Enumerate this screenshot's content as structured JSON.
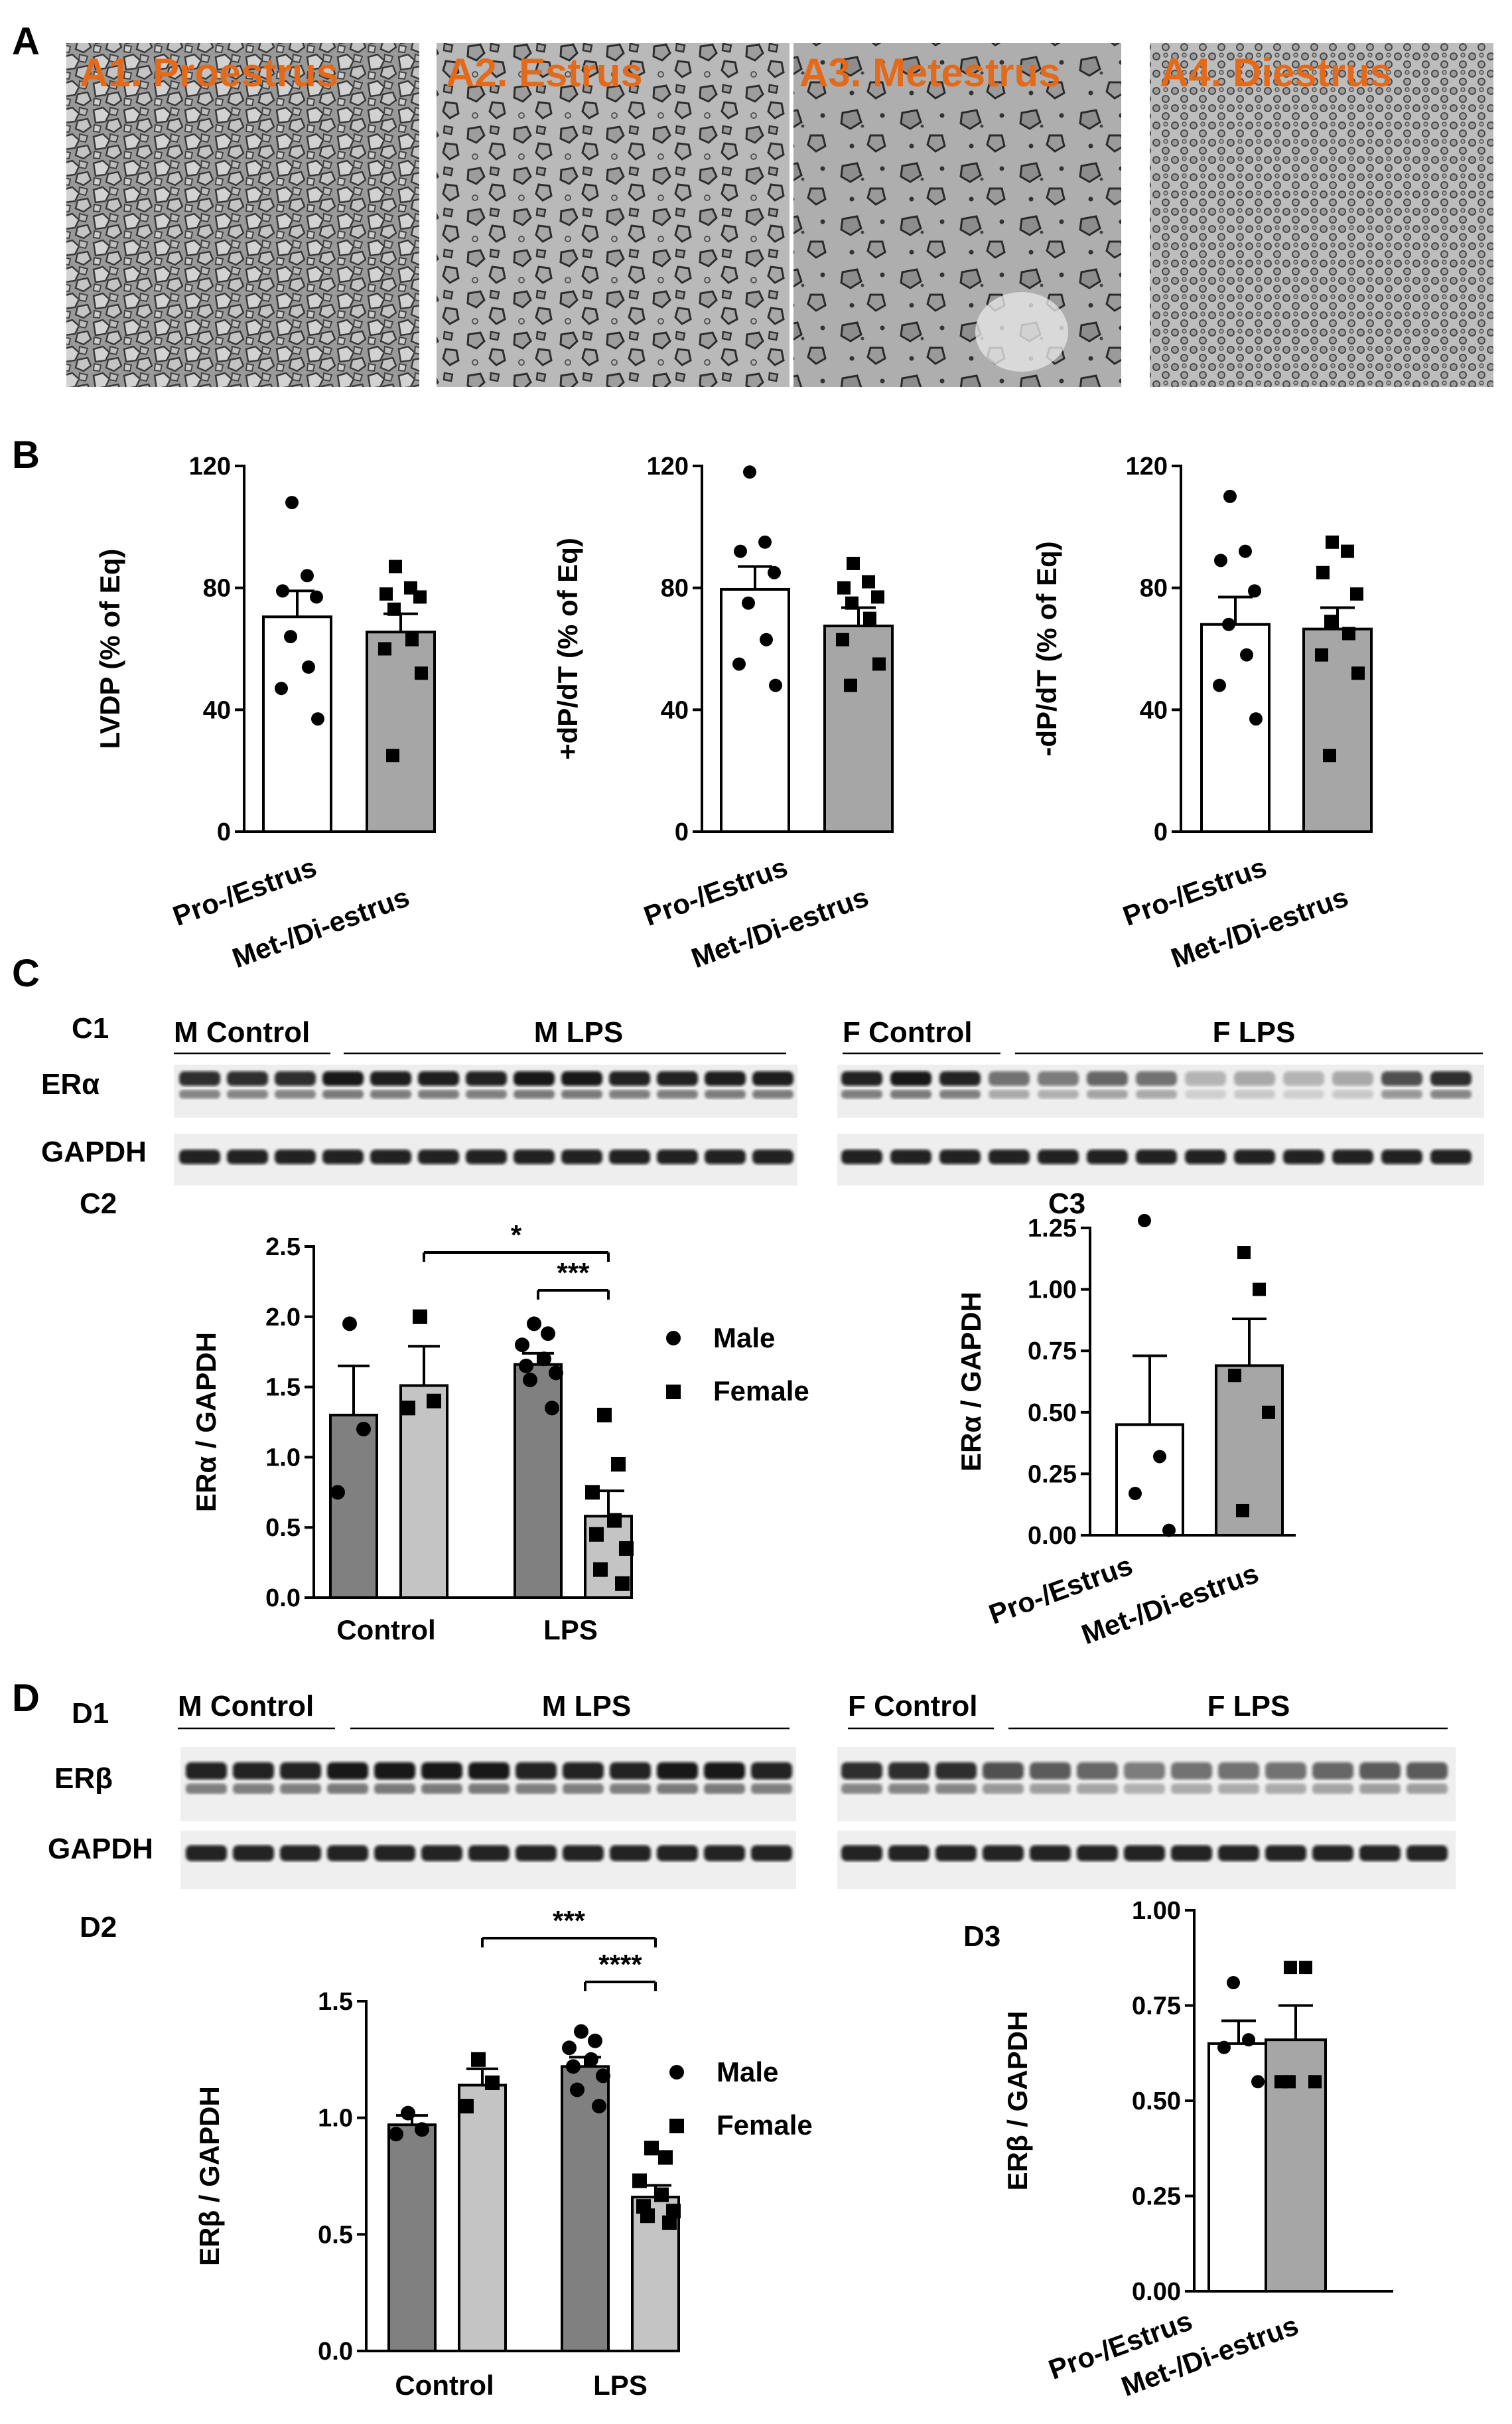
{
  "panel_letters": {
    "A": "A",
    "B": "B",
    "C": "C",
    "D": "D"
  },
  "photos": [
    {
      "label": "A1. Proestrus"
    },
    {
      "label": "A2. Estrus"
    },
    {
      "label": "A3. Metestrus"
    },
    {
      "label": "A4. Diestrus"
    }
  ],
  "colors": {
    "label_orange": "#e26a1a",
    "male_bar": "#808080",
    "female_bar": "#c4c4c4",
    "metdi_bar": "#a6a6a6",
    "pro_bar": "#ffffff"
  },
  "blots": [
    {
      "id": "C1",
      "tag": "C1",
      "groups": {
        "m_control": "M Control",
        "m_lps": "M LPS",
        "f_control": "F Control",
        "f_lps": "F LPS"
      },
      "rows": {
        "target": "ERα",
        "loading": "GAPDH"
      }
    },
    {
      "id": "D1",
      "tag": "D1",
      "groups": {
        "m_control": "M Control",
        "m_lps": "M LPS",
        "f_control": "F Control",
        "f_lps": "F LPS"
      },
      "rows": {
        "target": "ERβ",
        "loading": "GAPDH"
      }
    }
  ],
  "legend": {
    "male": "Male",
    "female": "Female"
  },
  "chart_data": [
    {
      "id": "B-LVDP",
      "type": "bar",
      "categories": [
        "Pro-/Estrus",
        "Met-/Di-estrus"
      ],
      "ylabel": "LVDP (% of Eq)",
      "ylim": [
        0,
        120
      ],
      "yticks": [
        "0",
        "40",
        "80",
        "120"
      ],
      "means": [
        70.5,
        65.5
      ],
      "sem": [
        8.5,
        6.0
      ],
      "points": [
        [
          108,
          84,
          79,
          77,
          64,
          54,
          47,
          37
        ],
        [
          87,
          80,
          78,
          77,
          73,
          63,
          60,
          52,
          25
        ]
      ]
    },
    {
      "id": "B-pdpdt",
      "type": "bar",
      "categories": [
        "Pro-/Estrus",
        "Met-/Di-estrus"
      ],
      "ylabel": "+dP/dT (% of Eq)",
      "ylim": [
        0,
        120
      ],
      "yticks": [
        "0",
        "40",
        "80",
        "120"
      ],
      "means": [
        79.5,
        67.5
      ],
      "sem": [
        7.5,
        6.0
      ],
      "points": [
        [
          118,
          95,
          92,
          85,
          75,
          63,
          55,
          48
        ],
        [
          88,
          82,
          80,
          77,
          75,
          70,
          63,
          55,
          48
        ]
      ]
    },
    {
      "id": "B-ndpdt",
      "type": "bar",
      "categories": [
        "Pro-/Estrus",
        "Met-/Di-estrus"
      ],
      "ylabel": "-dP/dT (% of Eq)",
      "ylim": [
        0,
        120
      ],
      "yticks": [
        "0",
        "40",
        "80",
        "120"
      ],
      "means": [
        68,
        66.5
      ],
      "sem": [
        9.0,
        7.0
      ],
      "points": [
        [
          110,
          92,
          89,
          79,
          68,
          58,
          48,
          37
        ],
        [
          95,
          92,
          85,
          78,
          69,
          65,
          58,
          52,
          25
        ]
      ]
    },
    {
      "id": "C2",
      "tag": "C2",
      "type": "bar",
      "categories": [
        "Control",
        "LPS"
      ],
      "series": [
        {
          "name": "Male"
        },
        {
          "name": "Female"
        }
      ],
      "ylabel": "ERα / GAPDH",
      "ylim": [
        0,
        2.5
      ],
      "yticks": [
        "0.0",
        "0.5",
        "1.0",
        "1.5",
        "2.0",
        "2.5"
      ],
      "means": [
        [
          1.3,
          1.51
        ],
        [
          1.66,
          0.58
        ]
      ],
      "sem": [
        [
          0.35,
          0.28
        ],
        [
          0.08,
          0.18
        ]
      ],
      "points": [
        [
          [
            1.95,
            1.2,
            0.75
          ],
          [
            2.0,
            1.4,
            1.35
          ]
        ],
        [
          [
            1.95,
            1.88,
            1.8,
            1.7,
            1.65,
            1.6,
            1.55,
            1.35
          ],
          [
            1.3,
            0.95,
            0.75,
            0.55,
            0.45,
            0.35,
            0.2,
            0.1
          ]
        ]
      ],
      "significance": [
        {
          "label": "*",
          "span": "Control-Female to LPS-Female"
        },
        {
          "label": "***",
          "span": "LPS-Male to LPS-Female"
        }
      ]
    },
    {
      "id": "C3",
      "tag": "C3",
      "type": "bar",
      "categories": [
        "Pro-/Estrus",
        "Met-/Di-estrus"
      ],
      "ylabel": "ERα / GAPDH",
      "ylim": [
        0,
        1.25
      ],
      "yticks": [
        "0.00",
        "0.25",
        "0.50",
        "0.75",
        "1.00",
        "1.25"
      ],
      "means": [
        0.45,
        0.69
      ],
      "sem": [
        0.28,
        0.19
      ],
      "points": [
        [
          1.28,
          0.32,
          0.17,
          0.02
        ],
        [
          1.15,
          1.0,
          0.65,
          0.5,
          0.1
        ]
      ]
    },
    {
      "id": "D2",
      "tag": "D2",
      "type": "bar",
      "categories": [
        "Control",
        "LPS"
      ],
      "series": [
        {
          "name": "Male"
        },
        {
          "name": "Female"
        }
      ],
      "ylabel": "ERβ / GAPDH",
      "ylim": [
        0,
        1.5
      ],
      "yticks": [
        "0.0",
        "0.5",
        "1.0",
        "1.5"
      ],
      "means": [
        [
          0.97,
          1.14
        ],
        [
          1.22,
          0.66
        ]
      ],
      "sem": [
        [
          0.04,
          0.07
        ],
        [
          0.04,
          0.05
        ]
      ],
      "points": [
        [
          [
            1.02,
            0.95,
            0.93
          ],
          [
            1.25,
            1.15,
            1.05
          ]
        ],
        [
          [
            1.37,
            1.33,
            1.3,
            1.25,
            1.22,
            1.18,
            1.12,
            1.05
          ],
          [
            0.87,
            0.83,
            0.73,
            0.67,
            0.62,
            0.6,
            0.58,
            0.55
          ]
        ]
      ],
      "significance": [
        {
          "label": "***",
          "span": "Control-Female to LPS-Female"
        },
        {
          "label": "****",
          "span": "LPS-Male to LPS-Female"
        }
      ]
    },
    {
      "id": "D3",
      "tag": "D3",
      "type": "bar",
      "categories": [
        "Pro-/Estrus",
        "Met-/Di-estrus"
      ],
      "ylabel": "ERβ / GAPDH",
      "ylim": [
        0,
        1.0
      ],
      "yticks": [
        "0.00",
        "0.25",
        "0.50",
        "0.75",
        "1.00"
      ],
      "means": [
        0.65,
        0.66
      ],
      "sem": [
        0.06,
        0.09
      ],
      "points": [
        [
          0.81,
          0.66,
          0.64,
          0.55
        ],
        [
          0.85,
          0.85,
          0.55,
          0.55,
          0.55
        ]
      ]
    }
  ]
}
